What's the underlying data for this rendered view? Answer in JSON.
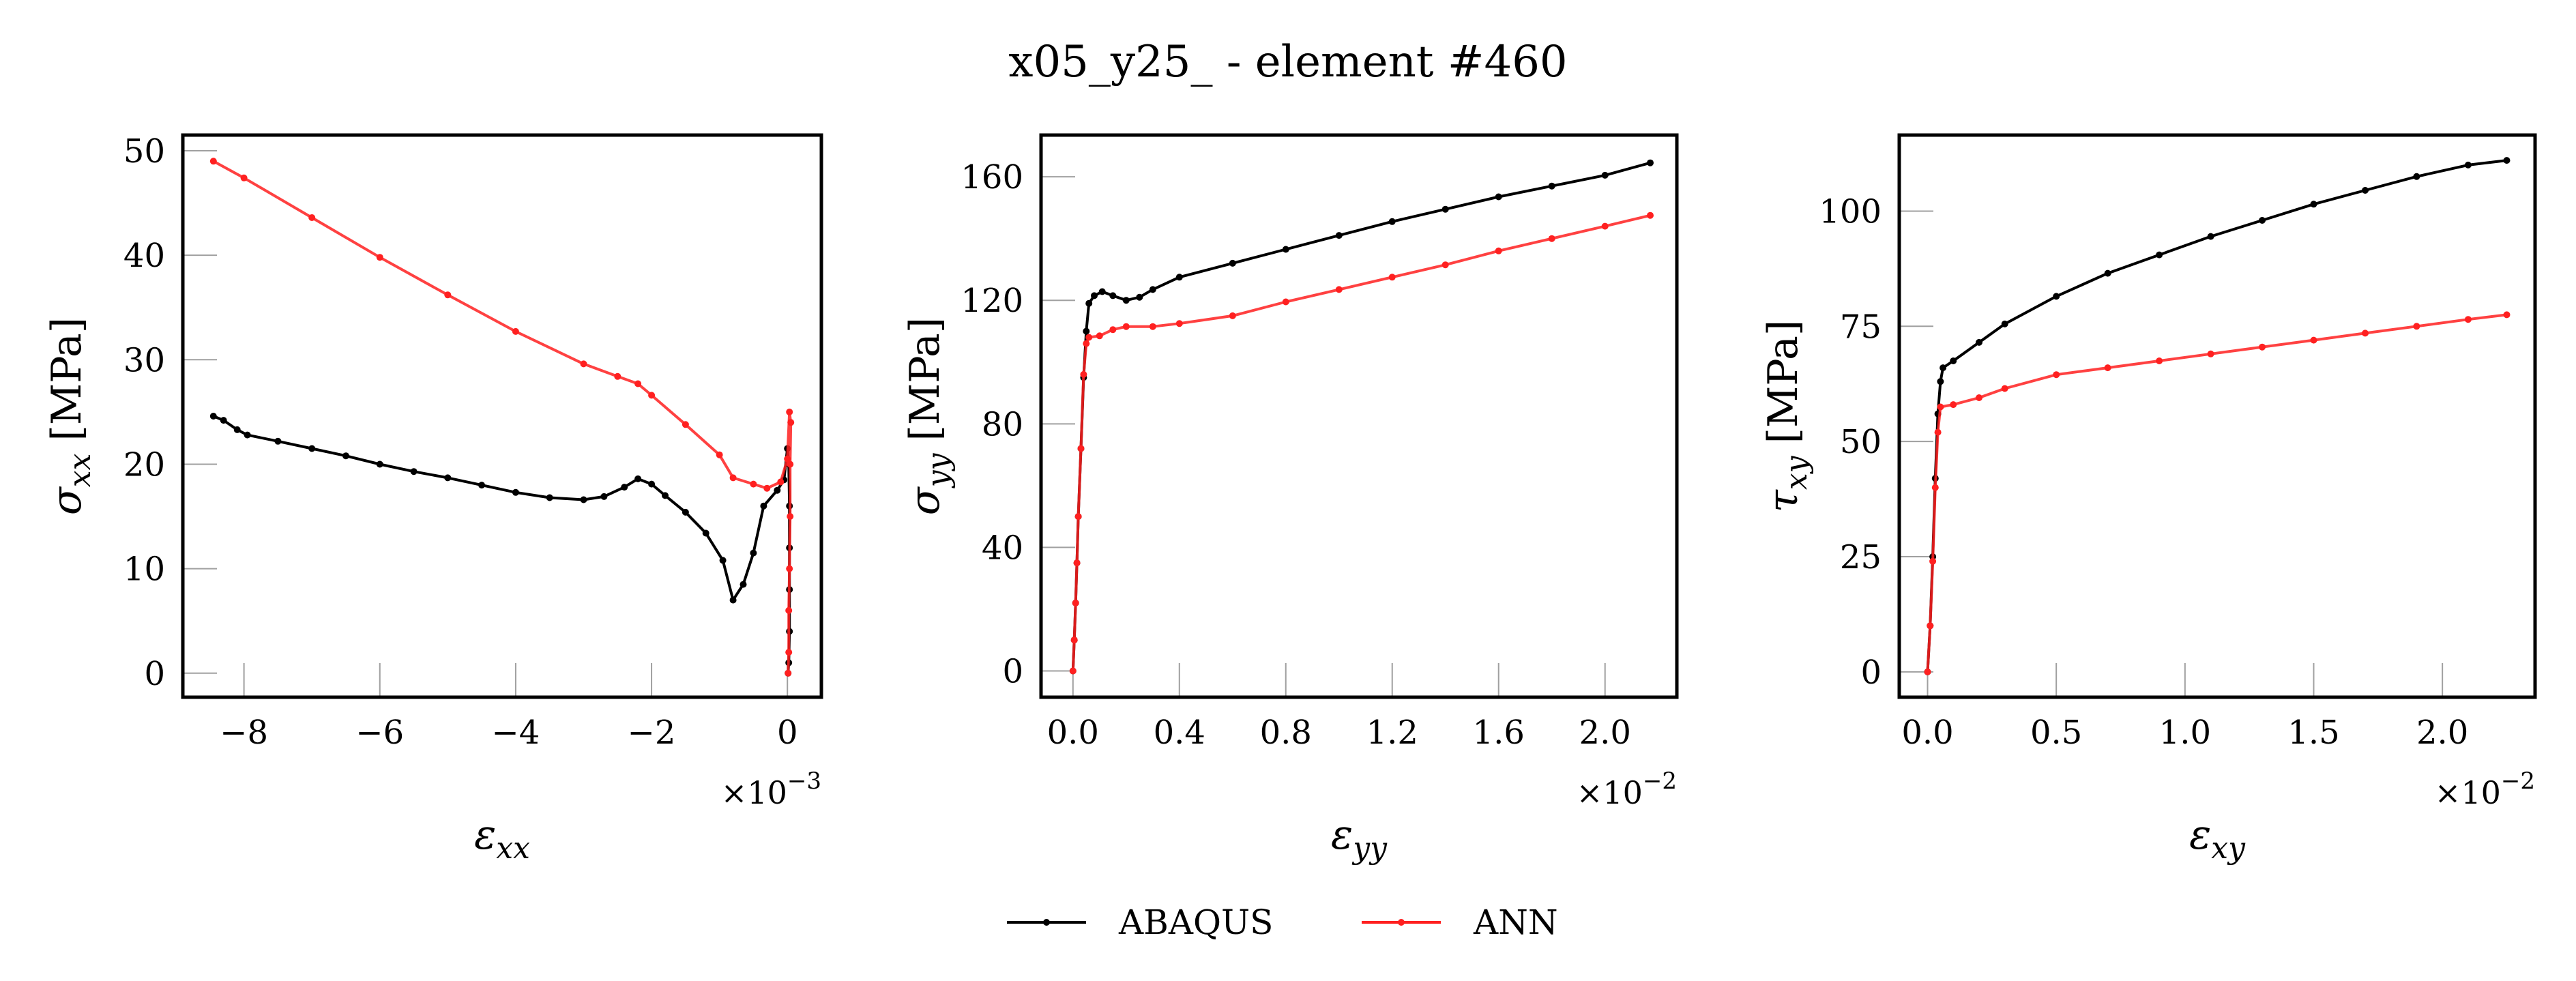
{
  "figure": {
    "title": "x05_y25_ - element #460"
  },
  "legend": {
    "placement": "bottom-center",
    "entries": [
      {
        "name": "ABAQUS",
        "color": "#000000"
      },
      {
        "name": "ANN",
        "color": "#ff2020"
      }
    ]
  },
  "chart_data": [
    {
      "type": "line",
      "xlabel": {
        "symbol": "ε",
        "sub": "xx"
      },
      "ylabel": {
        "symbol": "σ",
        "sub": "xx",
        "unit": "[MPa]"
      },
      "xlim": [
        -8.9,
        0.5
      ],
      "ylim": [
        -2.3,
        51.5
      ],
      "xticks": [
        -8,
        -6,
        -4,
        -2,
        0
      ],
      "xtick_labels": [
        "−8",
        "−6",
        "−4",
        "−2",
        "0"
      ],
      "yticks": [
        0,
        10,
        20,
        30,
        40,
        50
      ],
      "ytick_labels": [
        "0",
        "10",
        "20",
        "30",
        "40",
        "50"
      ],
      "x_multiplier": "×10−3",
      "series": [
        {
          "name": "ABAQUS",
          "color": "#000000",
          "points": [
            [
              -8.45,
              24.6
            ],
            [
              -8.3,
              24.2
            ],
            [
              -8.1,
              23.3
            ],
            [
              -7.95,
              22.8
            ],
            [
              -7.5,
              22.2
            ],
            [
              -7.0,
              21.5
            ],
            [
              -6.5,
              20.8
            ],
            [
              -6.0,
              20.0
            ],
            [
              -5.5,
              19.3
            ],
            [
              -5.0,
              18.7
            ],
            [
              -4.5,
              18.0
            ],
            [
              -4.0,
              17.3
            ],
            [
              -3.5,
              16.8
            ],
            [
              -3.0,
              16.6
            ],
            [
              -2.7,
              16.9
            ],
            [
              -2.4,
              17.8
            ],
            [
              -2.2,
              18.6
            ],
            [
              -2.0,
              18.1
            ],
            [
              -1.8,
              17.0
            ],
            [
              -1.5,
              15.4
            ],
            [
              -1.2,
              13.4
            ],
            [
              -0.95,
              10.8
            ],
            [
              -0.8,
              7.0
            ],
            [
              -0.65,
              8.5
            ],
            [
              -0.5,
              11.5
            ],
            [
              -0.35,
              16.0
            ],
            [
              -0.15,
              17.5
            ],
            [
              -0.05,
              18.5
            ],
            [
              0.0,
              21.5
            ],
            [
              0.02,
              20.0
            ],
            [
              0.03,
              16.0
            ],
            [
              0.03,
              12.0
            ],
            [
              0.03,
              8.0
            ],
            [
              0.03,
              4.0
            ],
            [
              0.02,
              1.0
            ],
            [
              0.01,
              0.0
            ]
          ]
        },
        {
          "name": "ANN",
          "color": "#ff2020",
          "points": [
            [
              -8.45,
              49.0
            ],
            [
              -8.0,
              47.4
            ],
            [
              -7.0,
              43.6
            ],
            [
              -6.0,
              39.8
            ],
            [
              -5.0,
              36.2
            ],
            [
              -4.0,
              32.7
            ],
            [
              -3.0,
              29.6
            ],
            [
              -2.5,
              28.4
            ],
            [
              -2.2,
              27.7
            ],
            [
              -2.0,
              26.6
            ],
            [
              -1.5,
              23.8
            ],
            [
              -1.0,
              20.9
            ],
            [
              -0.8,
              18.7
            ],
            [
              -0.5,
              18.1
            ],
            [
              -0.3,
              17.7
            ],
            [
              -0.1,
              18.3
            ],
            [
              0.0,
              20.5
            ],
            [
              0.03,
              25.0
            ],
            [
              0.05,
              24.0
            ],
            [
              0.04,
              20.0
            ],
            [
              0.04,
              15.0
            ],
            [
              0.03,
              10.0
            ],
            [
              0.02,
              6.0
            ],
            [
              0.02,
              2.0
            ],
            [
              0.01,
              0.0
            ]
          ]
        }
      ]
    },
    {
      "type": "line",
      "xlabel": {
        "symbol": "ε",
        "sub": "yy"
      },
      "ylabel": {
        "symbol": "σ",
        "sub": "yy",
        "unit": "[MPa]"
      },
      "xlim": [
        -0.12,
        2.27
      ],
      "ylim": [
        -8.5,
        173.5
      ],
      "xticks": [
        0.0,
        0.4,
        0.8,
        1.2,
        1.6,
        2.0
      ],
      "xtick_labels": [
        "0.0",
        "0.4",
        "0.8",
        "1.2",
        "1.6",
        "2.0"
      ],
      "yticks": [
        0,
        40,
        80,
        120,
        160
      ],
      "ytick_labels": [
        "0",
        "40",
        "80",
        "120",
        "160"
      ],
      "x_multiplier": "×10−2",
      "series": [
        {
          "name": "ABAQUS",
          "color": "#000000",
          "points": [
            [
              0.0,
              0.0
            ],
            [
              0.005,
              10.0
            ],
            [
              0.01,
              22.0
            ],
            [
              0.015,
              35.0
            ],
            [
              0.02,
              50.0
            ],
            [
              0.03,
              72.0
            ],
            [
              0.04,
              95.0
            ],
            [
              0.05,
              110.0
            ],
            [
              0.06,
              119.0
            ],
            [
              0.08,
              121.5
            ],
            [
              0.11,
              122.8
            ],
            [
              0.15,
              121.5
            ],
            [
              0.2,
              120.0
            ],
            [
              0.25,
              121.0
            ],
            [
              0.3,
              123.5
            ],
            [
              0.4,
              127.5
            ],
            [
              0.6,
              132.0
            ],
            [
              0.8,
              136.5
            ],
            [
              1.0,
              141.0
            ],
            [
              1.2,
              145.5
            ],
            [
              1.4,
              149.5
            ],
            [
              1.6,
              153.5
            ],
            [
              1.8,
              157.0
            ],
            [
              2.0,
              160.5
            ],
            [
              2.17,
              164.5
            ]
          ]
        },
        {
          "name": "ANN",
          "color": "#ff2020",
          "points": [
            [
              0.0,
              0.0
            ],
            [
              0.005,
              10.0
            ],
            [
              0.01,
              22.0
            ],
            [
              0.015,
              35.0
            ],
            [
              0.02,
              50.0
            ],
            [
              0.03,
              72.0
            ],
            [
              0.04,
              96.0
            ],
            [
              0.05,
              106.0
            ],
            [
              0.06,
              108.0
            ],
            [
              0.1,
              108.5
            ],
            [
              0.15,
              110.5
            ],
            [
              0.2,
              111.5
            ],
            [
              0.3,
              111.5
            ],
            [
              0.4,
              112.5
            ],
            [
              0.6,
              115.0
            ],
            [
              0.8,
              119.5
            ],
            [
              1.0,
              123.5
            ],
            [
              1.2,
              127.5
            ],
            [
              1.4,
              131.5
            ],
            [
              1.6,
              136.0
            ],
            [
              1.8,
              140.0
            ],
            [
              2.0,
              144.0
            ],
            [
              2.17,
              147.5
            ]
          ]
        }
      ]
    },
    {
      "type": "line",
      "xlabel": {
        "symbol": "ε",
        "sub": "xy"
      },
      "ylabel": {
        "symbol": "τ",
        "sub": "xy",
        "unit": "[MPa]"
      },
      "xlim": [
        -0.11,
        2.36
      ],
      "ylim": [
        -5.5,
        116.5
      ],
      "xticks": [
        0.0,
        0.5,
        1.0,
        1.5,
        2.0
      ],
      "xtick_labels": [
        "0.0",
        "0.5",
        "1.0",
        "1.5",
        "2.0"
      ],
      "yticks": [
        0,
        25,
        50,
        75,
        100
      ],
      "ytick_labels": [
        "0",
        "25",
        "50",
        "75",
        "100"
      ],
      "x_multiplier": "×10−2",
      "series": [
        {
          "name": "ABAQUS",
          "color": "#000000",
          "points": [
            [
              0.0,
              0.0
            ],
            [
              0.01,
              10.0
            ],
            [
              0.02,
              25.0
            ],
            [
              0.03,
              42.0
            ],
            [
              0.04,
              56.0
            ],
            [
              0.05,
              63.0
            ],
            [
              0.06,
              66.0
            ],
            [
              0.1,
              67.5
            ],
            [
              0.2,
              71.5
            ],
            [
              0.3,
              75.5
            ],
            [
              0.5,
              81.5
            ],
            [
              0.7,
              86.5
            ],
            [
              0.9,
              90.5
            ],
            [
              1.1,
              94.5
            ],
            [
              1.3,
              98.0
            ],
            [
              1.5,
              101.5
            ],
            [
              1.7,
              104.5
            ],
            [
              1.9,
              107.5
            ],
            [
              2.1,
              110.0
            ],
            [
              2.25,
              111.0
            ]
          ]
        },
        {
          "name": "ANN",
          "color": "#ff2020",
          "points": [
            [
              0.0,
              0.0
            ],
            [
              0.01,
              10.0
            ],
            [
              0.02,
              24.0
            ],
            [
              0.03,
              40.0
            ],
            [
              0.04,
              52.0
            ],
            [
              0.05,
              57.5
            ],
            [
              0.1,
              58.0
            ],
            [
              0.2,
              59.5
            ],
            [
              0.3,
              61.5
            ],
            [
              0.5,
              64.5
            ],
            [
              0.7,
              66.0
            ],
            [
              0.9,
              67.5
            ],
            [
              1.1,
              69.0
            ],
            [
              1.3,
              70.5
            ],
            [
              1.5,
              72.0
            ],
            [
              1.7,
              73.5
            ],
            [
              1.9,
              75.0
            ],
            [
              2.1,
              76.5
            ],
            [
              2.25,
              77.5
            ]
          ]
        }
      ]
    }
  ]
}
